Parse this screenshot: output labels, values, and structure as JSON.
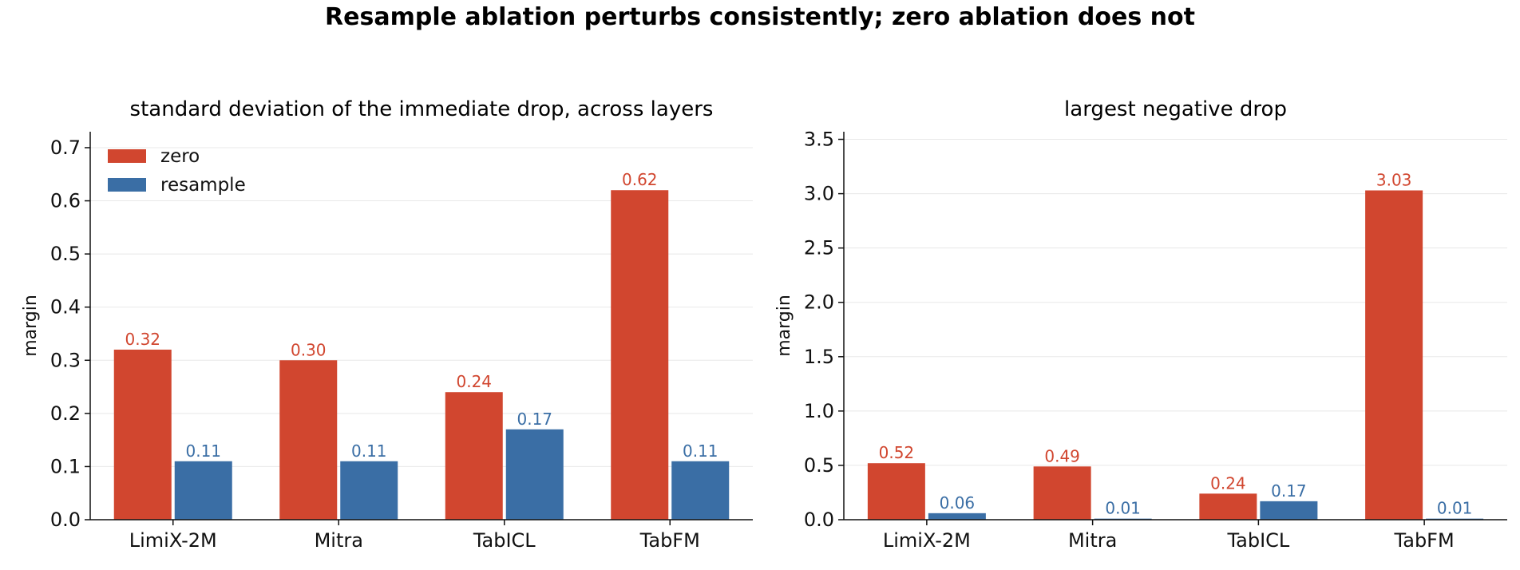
{
  "figure_title": "Resample ablation perturbs consistently; zero ablation does not",
  "colors": {
    "zero": "#d1462f",
    "resample": "#3a6ea5"
  },
  "chart_data": [
    {
      "type": "bar",
      "title": "standard deviation of the immediate drop, across layers",
      "xlabel": "",
      "ylabel": "margin",
      "categories": [
        "LimiX-2M",
        "Mitra",
        "TabICL",
        "TabFM"
      ],
      "series": [
        {
          "name": "zero",
          "values": [
            0.32,
            0.3,
            0.24,
            0.62
          ],
          "labels": [
            "0.32",
            "0.30",
            "0.24",
            "0.62"
          ]
        },
        {
          "name": "resample",
          "values": [
            0.11,
            0.11,
            0.17,
            0.11
          ],
          "labels": [
            "0.11",
            "0.11",
            "0.17",
            "0.11"
          ]
        }
      ],
      "ylim": [
        0,
        0.73
      ],
      "yticks": [
        0.0,
        0.1,
        0.2,
        0.3,
        0.4,
        0.5,
        0.6,
        0.7
      ],
      "ytick_labels": [
        "0.0",
        "0.1",
        "0.2",
        "0.3",
        "0.4",
        "0.5",
        "0.6",
        "0.7"
      ],
      "grid": "horizontal",
      "legend": "top-left"
    },
    {
      "type": "bar",
      "title": "largest negative drop",
      "xlabel": "",
      "ylabel": "margin",
      "categories": [
        "LimiX-2M",
        "Mitra",
        "TabICL",
        "TabFM"
      ],
      "series": [
        {
          "name": "zero",
          "values": [
            0.52,
            0.49,
            0.24,
            3.03
          ],
          "labels": [
            "0.52",
            "0.49",
            "0.24",
            "3.03"
          ]
        },
        {
          "name": "resample",
          "values": [
            0.06,
            0.01,
            0.17,
            0.01
          ],
          "labels": [
            "0.06",
            "0.01",
            "0.17",
            "0.01"
          ]
        }
      ],
      "ylim": [
        0,
        3.57
      ],
      "yticks": [
        0.0,
        0.5,
        1.0,
        1.5,
        2.0,
        2.5,
        3.0,
        3.5
      ],
      "ytick_labels": [
        "0.0",
        "0.5",
        "1.0",
        "1.5",
        "2.0",
        "2.5",
        "3.0",
        "3.5"
      ],
      "grid": "horizontal",
      "legend": "none"
    }
  ]
}
